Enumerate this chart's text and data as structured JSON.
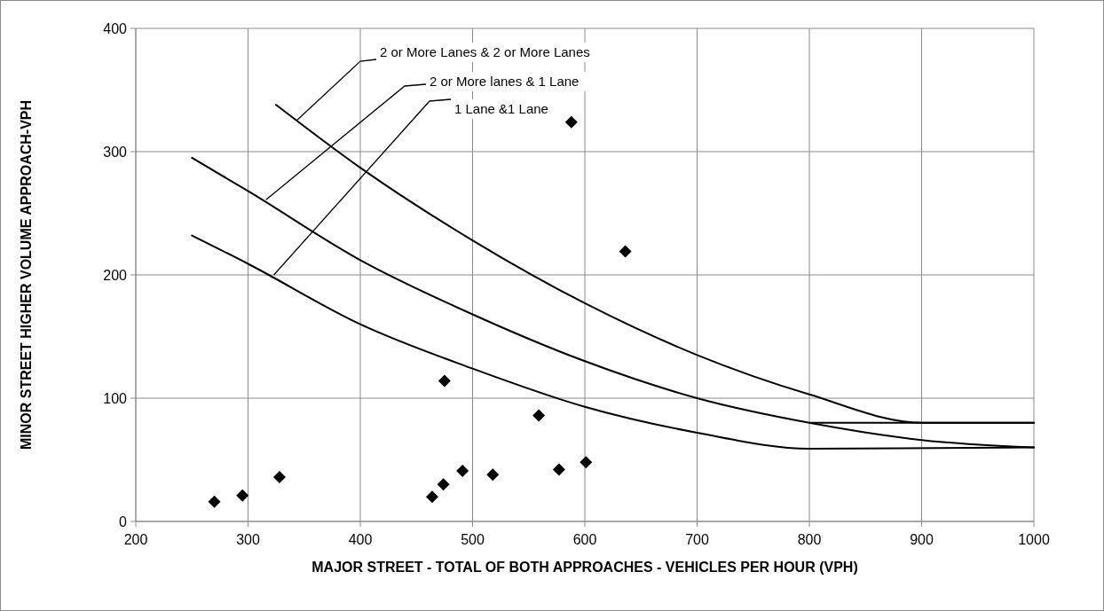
{
  "chart_data": {
    "type": "scatter",
    "xlabel": "MAJOR STREET - TOTAL OF BOTH APPROACHES - VEHICLES PER HOUR (VPH)",
    "ylabel": "MINOR STREET HIGHER VOLUME APPROACH-VPH",
    "xlim": [
      200,
      1000
    ],
    "ylim": [
      0,
      400
    ],
    "xticks": [
      200,
      300,
      400,
      500,
      600,
      700,
      800,
      900,
      1000
    ],
    "yticks": [
      0,
      100,
      200,
      300,
      400
    ],
    "grid": true,
    "series": [
      {
        "type": "line",
        "color": "#000000",
        "marker": "none",
        "x": [
          325,
          400,
          500,
          600,
          700,
          800,
          900,
          1000
        ],
        "values": [
          338,
          287,
          228,
          177,
          135,
          103,
          80,
          80
        ]
      },
      {
        "type": "line",
        "color": "#000000",
        "marker": "none",
        "x": [
          250,
          300,
          400,
          500,
          600,
          700,
          800,
          900,
          1000
        ],
        "values": [
          295,
          268,
          212,
          168,
          130,
          100,
          80,
          66,
          60
        ]
      },
      {
        "type": "line",
        "color": "#000000",
        "marker": "none",
        "x": [
          250,
          300,
          400,
          500,
          600,
          700,
          800,
          1000
        ],
        "values": [
          232,
          209,
          160,
          124,
          93,
          72,
          59,
          60
        ]
      },
      {
        "type": "line",
        "color": "#000000",
        "marker": "none",
        "x": [
          800,
          1000
        ],
        "values": [
          80,
          80
        ]
      },
      {
        "color": "#000000",
        "marker": "diamond",
        "x": [
          270,
          295,
          328,
          464,
          474,
          475,
          491,
          518,
          559,
          577,
          601,
          636,
          588
        ],
        "values": [
          16,
          21,
          36,
          20,
          30,
          114,
          41,
          38,
          86,
          42,
          48,
          219,
          324
        ]
      }
    ],
    "annotations": [
      {
        "text": "2 or More Lanes & 2 or More Lanes",
        "x": 343,
        "y": 325
      },
      {
        "text": "2 or More lanes & 1 Lane",
        "x": 316,
        "y": 261
      },
      {
        "text": "1 Lane &1 Lane",
        "x": 323,
        "y": 200
      }
    ]
  }
}
